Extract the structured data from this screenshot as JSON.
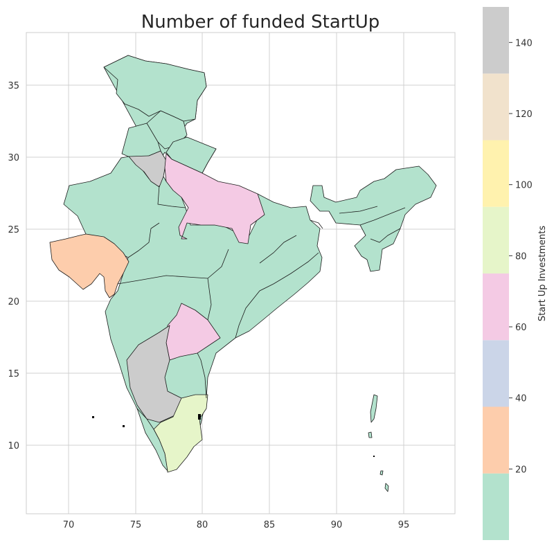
{
  "title": "Number of funded StartUp",
  "x_ticks": [
    "70",
    "75",
    "80",
    "85",
    "90",
    "95"
  ],
  "y_ticks": [
    "10",
    "15",
    "20",
    "25",
    "30",
    "35"
  ],
  "colorbar": {
    "label": "Start Up Investments",
    "ticks": [
      "20",
      "40",
      "60",
      "80",
      "100",
      "120",
      "140"
    ],
    "range": [
      0,
      150
    ],
    "bins": [
      {
        "from": 0,
        "to": 18.75,
        "color": "#b3e2cd"
      },
      {
        "from": 18.75,
        "to": 37.5,
        "color": "#fdcdac"
      },
      {
        "from": 37.5,
        "to": 56.25,
        "color": "#cbd5e8"
      },
      {
        "from": 56.25,
        "to": 75,
        "color": "#f4cae4"
      },
      {
        "from": 75,
        "to": 93.75,
        "color": "#e6f5c9"
      },
      {
        "from": 93.75,
        "to": 112.5,
        "color": "#fff2ae"
      },
      {
        "from": 112.5,
        "to": 131.25,
        "color": "#f1e2cc"
      },
      {
        "from": 131.25,
        "to": 150,
        "color": "#cccccc"
      }
    ]
  },
  "colors": {
    "low": "#b3e2cd",
    "gujarat": "#fdcdac",
    "mid_high": "#f4cae4",
    "tamil_nadu": "#e6f5c9",
    "highest": "#cccccc"
  }
}
